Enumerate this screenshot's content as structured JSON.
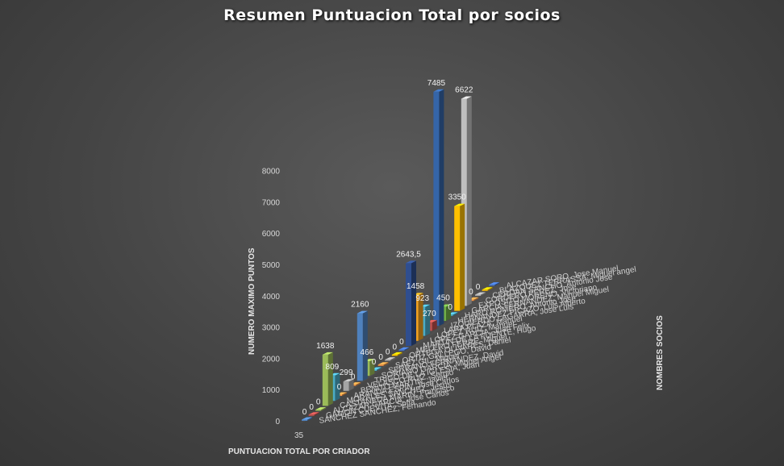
{
  "chart_data": {
    "type": "bar",
    "title": "Resumen Puntuacion Total por socios",
    "xlabel": "PUNTUACION TOTAL POR CRIADOR",
    "ylabel": "NUMERO MAXIMO PUNTOS",
    "zlabel": "NOMBRES SOCIOS",
    "ylim": [
      0,
      8000
    ],
    "yticks": [
      "0",
      "1000",
      "2000",
      "3000",
      "4000",
      "5000",
      "6000",
      "7000",
      "8000"
    ],
    "front_label": "35",
    "grid": false,
    "legend": "none",
    "categories": [
      "SANCHEZ SANCHEZ, Fernando",
      "GAMON CUEVITA, Sofia",
      "ALCAZAR GARCIA, Jose Carlos",
      "CASTANEDA MARIN, Francisco",
      "MORALES SANCHEZ, Jesus",
      "ARANDA ESPIN, Jose Carlos",
      "BENITO MARTIN, Javier",
      "VELASCO RUIZ, Sergio",
      "TRIGO DE LA IGLESIA, Juan",
      "SORIANO GARCIA, Miguel Angel",
      "SERRANO FERNANDEZ, David",
      "SAEZ GIL, Miguel",
      "ORTIZ GALLEGO, David",
      "ORTEGA OLIVARES, Daniel",
      "MELERO FERRE, Miguel",
      "MARTIN DE LA FUENTE, Hugo",
      "LOPEZ GARCIA, Juan Felix",
      "LOPEZ RUIZ, Manuel",
      "LARA PLAZA, Manuel",
      "IZQUIERDO LAGARRA, Jose Luis",
      "HERNANDEZ PICAZO, Luis Alberto",
      "HARO ROMERO, Antonio Jose",
      "GARCIA FERNANDEZ, Manuel Miguel",
      "EXPOSITO MORENO, Victoriano",
      "CORDERO PEREZ, Jose",
      "CERDAN SANCHO, Antonio Jose",
      "BLAZQUEZ TERRASSA, Miguel angel",
      "ALCAZAR SORO, Jose Manuel"
    ],
    "values": [
      0,
      0,
      0,
      1638,
      809,
      0,
      299,
      0,
      2160,
      466,
      0,
      0,
      0,
      0,
      0,
      2643.5,
      1458,
      923,
      270,
      7485,
      450,
      0,
      3350,
      6622,
      0,
      0,
      0,
      0
    ],
    "value_labels": [
      "0",
      "0",
      "0",
      "1638",
      "809",
      "0",
      "299",
      "0",
      "2160",
      "466",
      "0",
      "0",
      "0",
      "0",
      "0",
      "2643,5",
      "1458",
      "923",
      "270",
      "7485",
      "450",
      "0",
      "3350",
      "6622",
      "0",
      "0",
      "",
      ""
    ],
    "colors": [
      "#4f81bd",
      "#c0504d",
      "#9bbb59",
      "#9bbb59",
      "#4bacc6",
      "#f79646",
      "#a5a5a5",
      "#f79646",
      "#4f81bd",
      "#9bbb59",
      "#4bacc6",
      "#f79646",
      "#a5a5a5",
      "#ffc000",
      "#4472c4",
      "#2f4e8f",
      "#f0a020",
      "#4bacc6",
      "#c0504d",
      "#3565a8",
      "#70ad47",
      "#4bacc6",
      "#ffc000",
      "#bfbfbf",
      "#f79646",
      "#a5a5a5",
      "#ffc000",
      "#4472c4"
    ]
  }
}
